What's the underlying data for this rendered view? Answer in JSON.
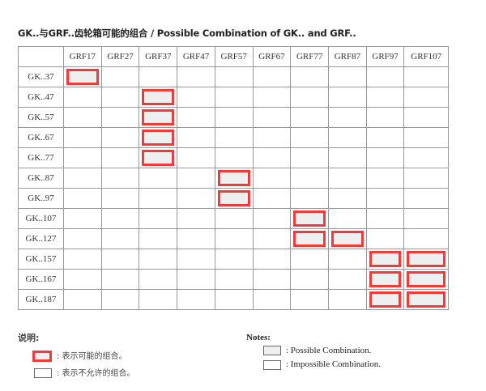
{
  "title": "GK..与GRF..齿轮箱可能的组合  / Possible Combination of GK.. and GRF..",
  "columns": [
    "GRF17",
    "GRF27",
    "GRF37",
    "GRF47",
    "GRF57",
    "GRF67",
    "GRF77",
    "GRF87",
    "GRF97",
    "GRF107"
  ],
  "rows": [
    {
      "label": "GK..37",
      "possible": [
        "GRF17"
      ]
    },
    {
      "label": "GK..47",
      "possible": [
        "GRF37"
      ]
    },
    {
      "label": "GK..57",
      "possible": [
        "GRF37"
      ]
    },
    {
      "label": "GK..67",
      "possible": [
        "GRF37"
      ]
    },
    {
      "label": "GK..77",
      "possible": [
        "GRF37"
      ]
    },
    {
      "label": "GK..87",
      "possible": [
        "GRF57"
      ]
    },
    {
      "label": "GK..97",
      "possible": [
        "GRF57"
      ]
    },
    {
      "label": "GK..107",
      "possible": [
        "GRF77"
      ]
    },
    {
      "label": "GK..127",
      "possible": [
        "GRF77",
        "GRF87"
      ]
    },
    {
      "label": "GK..157",
      "possible": [
        "GRF97",
        "GRF107"
      ]
    },
    {
      "label": "GK..167",
      "possible": [
        "GRF97",
        "GRF107"
      ]
    },
    {
      "label": "GK..187",
      "possible": [
        "GRF97",
        "GRF107"
      ]
    }
  ],
  "legend_cn": {
    "heading": "说明:",
    "possible": ":  表示可能的组合。",
    "impossible": ":  表示不允许的组合。"
  },
  "legend_en": {
    "heading": "Notes:",
    "possible": ": Possible Combination.",
    "impossible": ": Impossible Combination."
  },
  "colors": {
    "highlight": "#f23a3a",
    "fill": "#eef0ef"
  }
}
